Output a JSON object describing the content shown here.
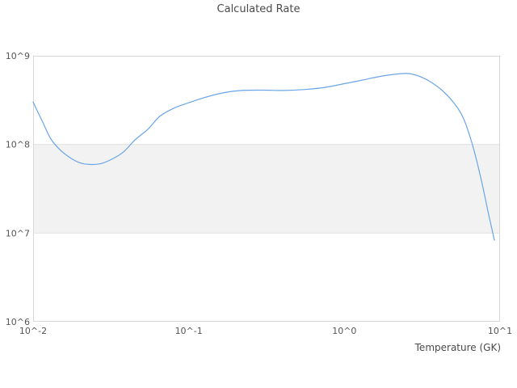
{
  "chart_data": {
    "type": "line",
    "title": "Calculated Rate",
    "xlabel": "Temperature (GK)",
    "ylabel": "",
    "x_scale": "log",
    "y_scale": "log",
    "xlim": [
      0.01,
      10
    ],
    "ylim": [
      1000000.0,
      1000000000.0
    ],
    "grid": "horizontal decade gridlines only, no vertical gridlines",
    "legend": "none",
    "x_ticks": [
      {
        "label": "10^-2",
        "value": 0.01
      },
      {
        "label": "10^-1",
        "value": 0.1
      },
      {
        "label": "10^0",
        "value": 1
      },
      {
        "label": "10^1",
        "value": 10
      }
    ],
    "y_ticks": [
      {
        "label": "10^6",
        "value": 1000000.0
      },
      {
        "label": "10^7",
        "value": 10000000.0
      },
      {
        "label": "10^8",
        "value": 100000000.0
      },
      {
        "label": "10^9",
        "value": 1000000000.0
      }
    ],
    "shaded_band": {
      "from": 10000000.0,
      "to": 100000000.0,
      "color": "#f2f2f2"
    },
    "series": [
      {
        "name": "calculated-rate",
        "color": "#6aa5e8",
        "points": [
          [
            0.01,
            300000000.0
          ],
          [
            0.0115,
            180000000.0
          ],
          [
            0.013,
            115000000.0
          ],
          [
            0.015,
            86000000.0
          ],
          [
            0.0175,
            70000000.0
          ],
          [
            0.02,
            62000000.0
          ],
          [
            0.023,
            59500000.0
          ],
          [
            0.027,
            60500000.0
          ],
          [
            0.032,
            68000000.0
          ],
          [
            0.038,
            82000000.0
          ],
          [
            0.045,
            112000000.0
          ],
          [
            0.055,
            150000000.0
          ],
          [
            0.065,
            207000000.0
          ],
          [
            0.08,
            256000000.0
          ],
          [
            0.1,
            295000000.0
          ],
          [
            0.13,
            343000000.0
          ],
          [
            0.17,
            385000000.0
          ],
          [
            0.22,
            406000000.0
          ],
          [
            0.3,
            410000000.0
          ],
          [
            0.4,
            406000000.0
          ],
          [
            0.55,
            416000000.0
          ],
          [
            0.75,
            440000000.0
          ],
          [
            1.0,
            485000000.0
          ],
          [
            1.3,
            530000000.0
          ],
          [
            1.7,
            586000000.0
          ],
          [
            2.2,
            624000000.0
          ],
          [
            2.6,
            630000000.0
          ],
          [
            3.0,
            590000000.0
          ],
          [
            3.5,
            520000000.0
          ],
          [
            4.2,
            414000000.0
          ],
          [
            5.0,
            300000000.0
          ],
          [
            5.8,
            200000000.0
          ],
          [
            6.6,
            104000000.0
          ],
          [
            7.5,
            43000000.0
          ],
          [
            8.4,
            17000000.0
          ],
          [
            9.2,
            8300000.0
          ]
        ]
      }
    ]
  },
  "colors": {
    "line": "#6aa5e8",
    "band": "#f2f2f2",
    "gridline": "#e3e3e3",
    "border": "#d8d8d8",
    "title_text": "#4a4a4a",
    "tick_text": "#555555",
    "background": "#ffffff"
  }
}
